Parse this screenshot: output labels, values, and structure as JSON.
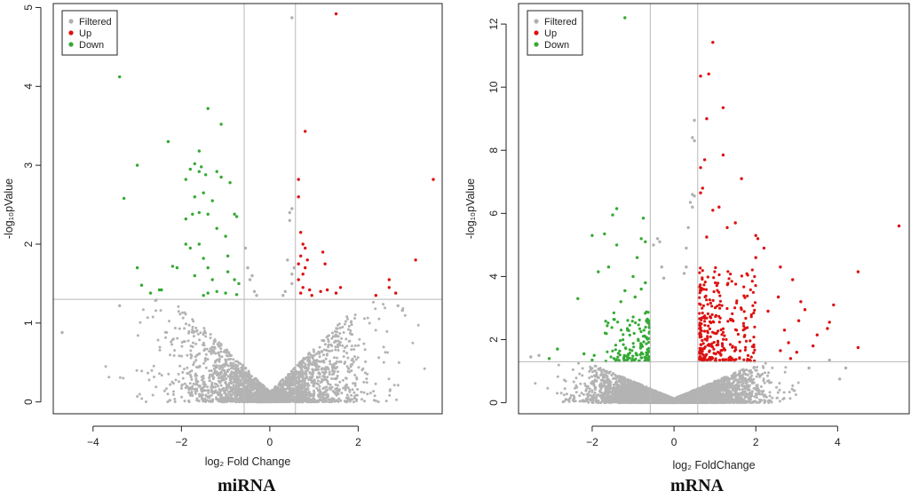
{
  "chart_data": [
    {
      "type": "scatter",
      "panel_label": "miRNA",
      "xlabel": "log₂ Fold Change",
      "ylabel": "-log₁₀pValue",
      "xlim": [
        -4.9,
        3.9
      ],
      "ylim": [
        -0.15,
        5.05
      ],
      "xticks": [
        -4,
        -2,
        0,
        2
      ],
      "yticks": [
        0,
        1,
        2,
        3,
        4,
        5
      ],
      "xtick_labels": [
        "−4",
        "−2",
        "0",
        "2"
      ],
      "ytick_labels": [
        "0",
        "1",
        "2",
        "3",
        "4",
        "5"
      ],
      "fc_threshold": 0.58,
      "p_threshold": 1.3,
      "legend": {
        "position": "top-left",
        "entries": [
          {
            "name": "Filtered",
            "color": "#b0b0b0"
          },
          {
            "name": "Up",
            "color": "#dd1111"
          },
          {
            "name": "Down",
            "color": "#33aa33"
          }
        ]
      },
      "background": {
        "n": 2600,
        "spread": 1.05,
        "ymax": 1.35,
        "seed": 7
      },
      "series": [
        {
          "name": "Filtered",
          "color": "#b0b0b0",
          "points": [
            [
              0.5,
              4.87
            ],
            [
              -4.7,
              0.88
            ],
            [
              -3.4,
              1.22
            ],
            [
              2.9,
              1.22
            ],
            [
              3.0,
              1.16
            ],
            [
              -0.55,
              1.95
            ],
            [
              -0.5,
              1.7
            ],
            [
              -0.45,
              1.55
            ],
            [
              -0.4,
              1.6
            ],
            [
              -0.35,
              1.4
            ],
            [
              0.45,
              2.4
            ],
            [
              0.5,
              2.45
            ],
            [
              0.45,
              2.3
            ],
            [
              0.4,
              1.8
            ],
            [
              0.55,
              1.7
            ],
            [
              0.5,
              1.5
            ],
            [
              0.35,
              1.4
            ],
            [
              0.3,
              1.35
            ],
            [
              -0.3,
              1.35
            ],
            [
              0.5,
              1.62
            ]
          ]
        },
        {
          "name": "Up",
          "color": "#dd1111",
          "points": [
            [
              1.5,
              4.92
            ],
            [
              0.8,
              3.43
            ],
            [
              3.7,
              2.82
            ],
            [
              0.65,
              2.82
            ],
            [
              0.65,
              2.6
            ],
            [
              0.7,
              2.15
            ],
            [
              0.75,
              2.0
            ],
            [
              0.8,
              1.95
            ],
            [
              0.7,
              1.85
            ],
            [
              0.65,
              1.75
            ],
            [
              0.85,
              1.8
            ],
            [
              0.8,
              1.7
            ],
            [
              0.75,
              1.62
            ],
            [
              0.65,
              1.55
            ],
            [
              1.2,
              1.9
            ],
            [
              1.25,
              1.75
            ],
            [
              3.3,
              1.8
            ],
            [
              0.75,
              1.45
            ],
            [
              0.7,
              1.38
            ],
            [
              0.9,
              1.42
            ],
            [
              0.95,
              1.35
            ],
            [
              1.15,
              1.4
            ],
            [
              1.3,
              1.42
            ],
            [
              1.6,
              1.45
            ],
            [
              2.7,
              1.55
            ],
            [
              2.7,
              1.45
            ],
            [
              2.85,
              1.38
            ],
            [
              2.4,
              1.35
            ],
            [
              1.5,
              1.38
            ]
          ]
        },
        {
          "name": "Down",
          "color": "#33aa33",
          "points": [
            [
              -3.4,
              4.12
            ],
            [
              -1.4,
              3.72
            ],
            [
              -1.1,
              3.52
            ],
            [
              -2.3,
              3.3
            ],
            [
              -1.6,
              3.18
            ],
            [
              -1.7,
              3.02
            ],
            [
              -3.0,
              3.0
            ],
            [
              -1.55,
              2.98
            ],
            [
              -1.8,
              2.95
            ],
            [
              -1.6,
              2.92
            ],
            [
              -1.2,
              2.92
            ],
            [
              -1.45,
              2.88
            ],
            [
              -1.1,
              2.85
            ],
            [
              -1.9,
              2.82
            ],
            [
              -0.9,
              2.78
            ],
            [
              -1.5,
              2.65
            ],
            [
              -1.7,
              2.6
            ],
            [
              -3.3,
              2.58
            ],
            [
              -1.3,
              2.55
            ],
            [
              -1.6,
              2.4
            ],
            [
              -1.75,
              2.38
            ],
            [
              -1.4,
              2.38
            ],
            [
              -1.9,
              2.32
            ],
            [
              -0.8,
              2.38
            ],
            [
              -0.75,
              2.35
            ],
            [
              -1.2,
              2.2
            ],
            [
              -1.0,
              2.1
            ],
            [
              -1.9,
              2.0
            ],
            [
              -1.6,
              2.0
            ],
            [
              -1.8,
              1.95
            ],
            [
              -0.95,
              1.85
            ],
            [
              -1.5,
              1.82
            ],
            [
              -2.2,
              1.72
            ],
            [
              -2.1,
              1.7
            ],
            [
              -3.0,
              1.7
            ],
            [
              -1.4,
              1.7
            ],
            [
              -0.95,
              1.65
            ],
            [
              -1.7,
              1.6
            ],
            [
              -1.3,
              1.55
            ],
            [
              -0.8,
              1.55
            ],
            [
              -0.7,
              1.5
            ],
            [
              -2.9,
              1.48
            ],
            [
              -2.5,
              1.42
            ],
            [
              -2.45,
              1.42
            ],
            [
              -2.7,
              1.38
            ],
            [
              -1.4,
              1.38
            ],
            [
              -1.0,
              1.38
            ],
            [
              -0.75,
              1.36
            ],
            [
              -1.2,
              1.4
            ],
            [
              -1.5,
              1.35
            ]
          ]
        }
      ]
    },
    {
      "type": "scatter",
      "panel_label": "mRNA",
      "xlabel": "log₂ FoldChange",
      "ylabel": "-log₁₀pValue",
      "xlim": [
        -3.8,
        5.75
      ],
      "ylim": [
        -0.35,
        12.65
      ],
      "xticks": [
        -2,
        0,
        2,
        4
      ],
      "yticks": [
        0,
        2,
        4,
        6,
        8,
        10,
        12
      ],
      "xtick_labels": [
        "−2",
        "0",
        "2",
        "4"
      ],
      "ytick_labels": [
        "0",
        "2",
        "4",
        "6",
        "8",
        "10",
        "12"
      ],
      "fc_threshold": 0.58,
      "p_threshold": 1.3,
      "legend": {
        "position": "top-left",
        "entries": [
          {
            "name": "Filtered",
            "color": "#b0b0b0"
          },
          {
            "name": "Up",
            "color": "#dd1111"
          },
          {
            "name": "Down",
            "color": "#33aa33"
          }
        ]
      },
      "background": {
        "n": 5200,
        "spread": 0.95,
        "ymax": 3.6,
        "seed": 21
      },
      "series": [
        {
          "name": "Filtered",
          "color": "#b0b0b0",
          "points": [
            [
              0.5,
              8.95
            ],
            [
              0.45,
              8.4
            ],
            [
              0.5,
              8.3
            ],
            [
              0.45,
              6.6
            ],
            [
              0.5,
              6.55
            ],
            [
              0.4,
              6.35
            ],
            [
              0.45,
              6.2
            ],
            [
              0.35,
              5.55
            ],
            [
              0.3,
              4.9
            ],
            [
              0.3,
              4.3
            ],
            [
              0.25,
              4.1
            ],
            [
              -0.4,
              5.2
            ],
            [
              -0.35,
              5.1
            ],
            [
              -0.3,
              4.3
            ],
            [
              -0.25,
              3.95
            ],
            [
              -0.5,
              5.0
            ],
            [
              -3.3,
              1.5
            ],
            [
              -3.5,
              1.45
            ],
            [
              4.2,
              1.1
            ],
            [
              4.05,
              0.75
            ],
            [
              3.3,
              1.1
            ],
            [
              3.8,
              1.35
            ]
          ]
        },
        {
          "name": "Up",
          "color": "#dd1111",
          "points": [
            [
              0.95,
              11.42
            ],
            [
              0.85,
              10.42
            ],
            [
              0.65,
              10.35
            ],
            [
              1.2,
              9.35
            ],
            [
              0.8,
              9.0
            ],
            [
              1.2,
              7.85
            ],
            [
              0.75,
              7.7
            ],
            [
              0.65,
              7.45
            ],
            [
              1.65,
              7.1
            ],
            [
              0.7,
              6.8
            ],
            [
              0.65,
              6.65
            ],
            [
              5.5,
              5.6
            ],
            [
              4.5,
              4.15
            ],
            [
              1.1,
              6.2
            ],
            [
              0.95,
              6.1
            ],
            [
              1.5,
              5.7
            ],
            [
              1.3,
              5.55
            ],
            [
              0.8,
              5.25
            ],
            [
              2.0,
              5.3
            ],
            [
              2.2,
              4.9
            ],
            [
              2.05,
              5.2
            ],
            [
              2.6,
              4.3
            ],
            [
              2.0,
              4.6
            ],
            [
              2.9,
              3.9
            ],
            [
              3.1,
              3.2
            ],
            [
              3.2,
              2.95
            ],
            [
              3.05,
              2.6
            ],
            [
              3.5,
              2.15
            ],
            [
              3.75,
              2.35
            ],
            [
              3.8,
              2.55
            ],
            [
              4.5,
              1.75
            ],
            [
              3.4,
              1.8
            ],
            [
              3.0,
              1.6
            ],
            [
              2.8,
              1.9
            ],
            [
              2.7,
              2.3
            ],
            [
              2.55,
              3.35
            ],
            [
              2.3,
              2.9
            ],
            [
              2.85,
              1.4
            ],
            [
              2.6,
              1.65
            ],
            [
              3.9,
              3.1
            ]
          ]
        },
        {
          "name": "Down",
          "color": "#33aa33",
          "points": [
            [
              -1.2,
              12.2
            ],
            [
              -1.4,
              6.15
            ],
            [
              -1.5,
              5.95
            ],
            [
              -0.75,
              5.85
            ],
            [
              -2.0,
              5.3
            ],
            [
              -1.7,
              5.35
            ],
            [
              -1.4,
              5.0
            ],
            [
              -0.8,
              5.2
            ],
            [
              -0.7,
              5.1
            ],
            [
              -0.9,
              4.6
            ],
            [
              -1.6,
              4.3
            ],
            [
              -1.85,
              4.15
            ],
            [
              -1.0,
              4.0
            ],
            [
              -1.2,
              3.55
            ],
            [
              -2.35,
              3.3
            ],
            [
              -0.95,
              3.35
            ],
            [
              -1.3,
              3.2
            ],
            [
              -0.8,
              3.6
            ],
            [
              -0.7,
              3.8
            ],
            [
              -2.85,
              1.7
            ],
            [
              -2.2,
              1.55
            ],
            [
              -1.95,
              1.5
            ],
            [
              -3.05,
              1.4
            ],
            [
              -2.0,
              1.35
            ]
          ]
        }
      ],
      "dense_clusters": {
        "up": {
          "n": 290,
          "x": [
            0.62,
            2.0
          ],
          "y": [
            1.32,
            4.3
          ],
          "color": "#dd1111",
          "seed": 5
        },
        "down": {
          "n": 140,
          "x": [
            -1.7,
            -0.6
          ],
          "y": [
            1.32,
            2.9
          ],
          "color": "#33aa33",
          "seed": 9
        }
      }
    }
  ],
  "captions": {
    "left": "miRNA",
    "right": "mRNA"
  }
}
